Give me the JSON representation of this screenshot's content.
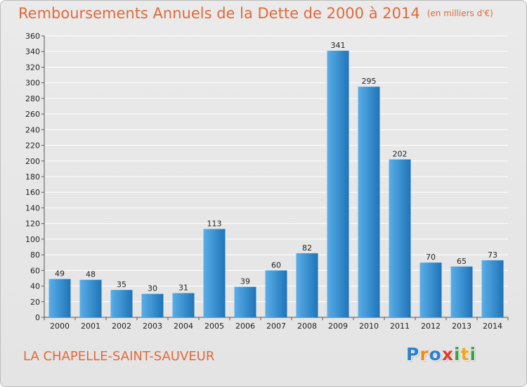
{
  "title": "Remboursements Annuels de la Dette de 2000 à 2014",
  "title_unit": "(en milliers d'€)",
  "location": "LA CHAPELLE-SAINT-SAUVEUR",
  "logo": {
    "letters": [
      "P",
      "r",
      "o",
      "x",
      "i",
      "t",
      "i"
    ],
    "colors": [
      "#2a7fd0",
      "#f08a1e",
      "#2a7fd0",
      "#e23b2e",
      "#3aa14a",
      "#f0a81e",
      "#3aa14a"
    ]
  },
  "colors": {
    "bar_light": "#5aaee8",
    "bar_dark": "#1e74b8",
    "title": "#e06a3a",
    "grid": "#ffffff"
  },
  "chart_data": {
    "type": "bar",
    "title": "Remboursements Annuels de la Dette de 2000 à 2014",
    "xlabel": "",
    "ylabel": "",
    "categories": [
      "2000",
      "2001",
      "2002",
      "2003",
      "2004",
      "2005",
      "2006",
      "2007",
      "2008",
      "2009",
      "2010",
      "2011",
      "2012",
      "2013",
      "2014"
    ],
    "values": [
      49,
      48,
      35,
      30,
      31,
      113,
      39,
      60,
      82,
      341,
      295,
      202,
      70,
      65,
      73
    ],
    "ylim": [
      0,
      360
    ],
    "ytick_step": 20,
    "grid": true,
    "legend": "none"
  }
}
